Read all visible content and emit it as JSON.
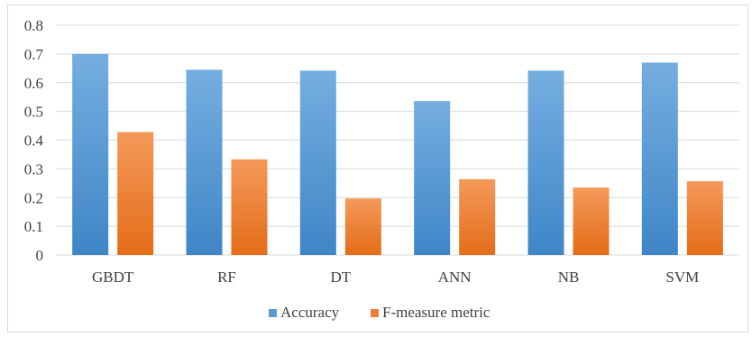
{
  "chart_data": {
    "type": "bar",
    "title": "",
    "xlabel": "",
    "ylabel": "",
    "categories": [
      "GBDT",
      "RF",
      "DT",
      "ANN",
      "NB",
      "SVM"
    ],
    "series": [
      {
        "name": "Accuracy",
        "color": "#5b9bd5",
        "values": [
          0.7,
          0.645,
          0.642,
          0.536,
          0.642,
          0.67
        ]
      },
      {
        "name": "F-measure metric",
        "color": "#ed7d31",
        "values": [
          0.428,
          0.333,
          0.197,
          0.264,
          0.235,
          0.257
        ]
      }
    ],
    "ylim": [
      0,
      0.8
    ],
    "yticks": [
      "0",
      "0.1",
      "0.2",
      "0.3",
      "0.4",
      "0.5",
      "0.6",
      "0.7",
      "0.8"
    ],
    "grid": true,
    "legend_position": "bottom"
  }
}
